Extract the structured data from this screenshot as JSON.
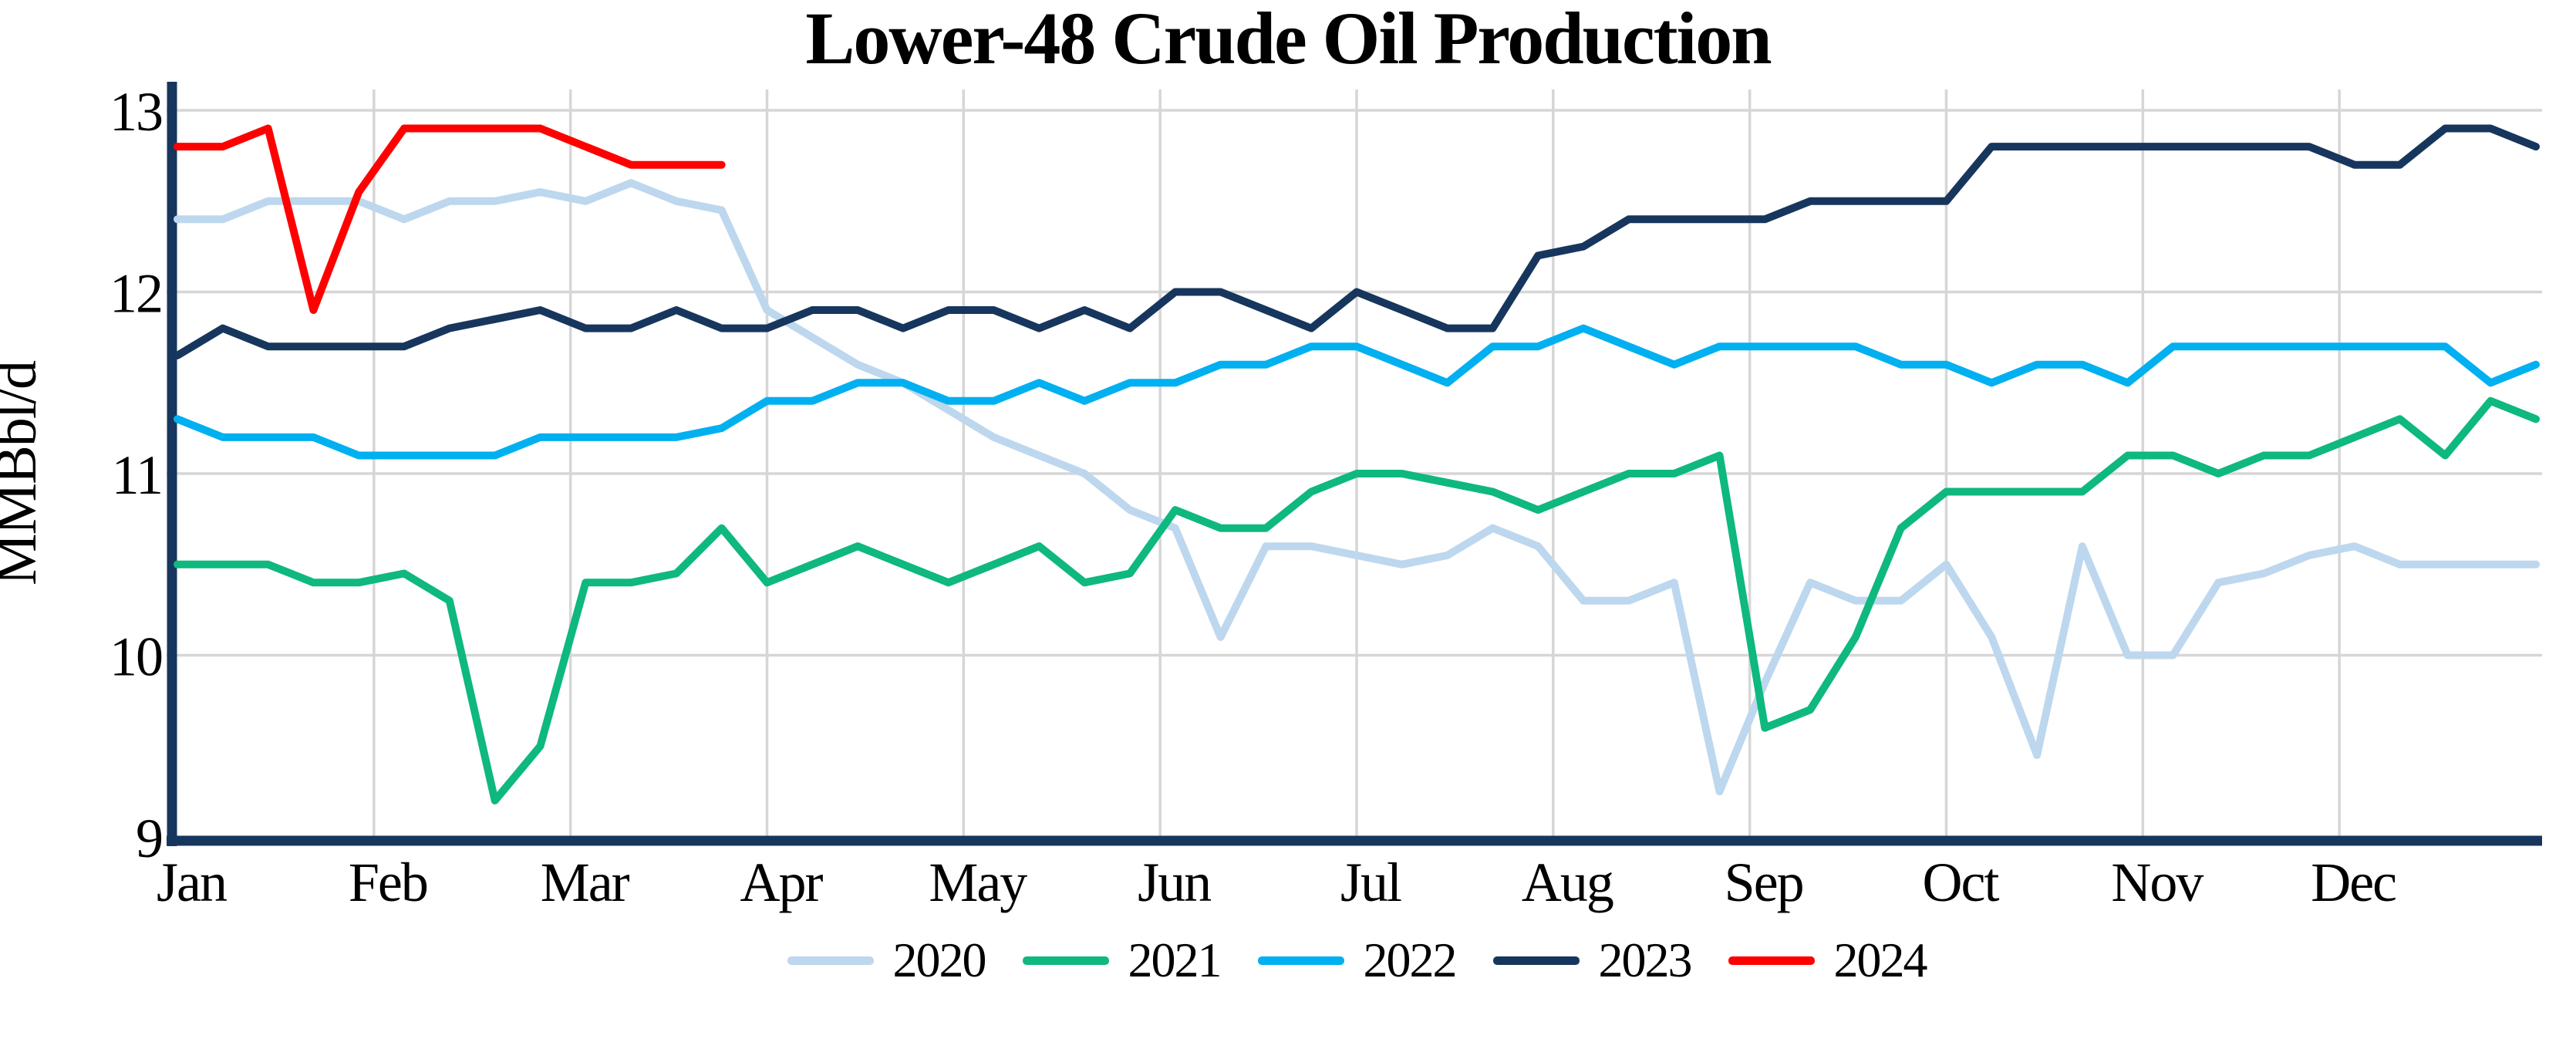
{
  "header": {
    "title": "Lower-48 Crude Oil Production"
  },
  "y_axis": {
    "label": "MMBbl/d",
    "tick_labels": [
      "13",
      "12",
      "11",
      "10",
      "9"
    ]
  },
  "x_axis": {
    "tick_labels": [
      "Jan",
      "Feb",
      "Mar",
      "Apr",
      "May",
      "Jun",
      "Jul",
      "Aug",
      "Sep",
      "Oct",
      "Nov",
      "Dec"
    ]
  },
  "legend": {
    "items": [
      {
        "label": "2020",
        "color": "#BDD7EE"
      },
      {
        "label": "2021",
        "color": "#0EB87E"
      },
      {
        "label": "2022",
        "color": "#00B0F0"
      },
      {
        "label": "2023",
        "color": "#17365D"
      },
      {
        "label": "2024",
        "color": "#FF0000"
      }
    ]
  },
  "chart_data": {
    "type": "line",
    "title": "Lower-48 Crude Oil Production",
    "ylabel": "MMBbl/d",
    "ylim": [
      9,
      13
    ],
    "y_ticks": [
      13,
      12,
      11,
      10,
      9
    ],
    "x_month_labels": [
      "Jan",
      "Feb",
      "Mar",
      "Apr",
      "May",
      "Jun",
      "Jul",
      "Aug",
      "Sep",
      "Oct",
      "Nov",
      "Dec"
    ],
    "x_cadence": "weekly",
    "weeks_per_year": 52,
    "grid": true,
    "grid_color": "#D6D6D6",
    "axis_color": "#17365D",
    "legend_position": "bottom",
    "series": [
      {
        "name": "2020",
        "color": "#BDD7EE",
        "values": [
          12.4,
          12.4,
          12.5,
          12.5,
          12.5,
          12.4,
          12.5,
          12.5,
          12.55,
          12.5,
          12.6,
          12.5,
          12.45,
          11.9,
          11.75,
          11.6,
          11.5,
          11.35,
          11.2,
          11.1,
          11.0,
          10.8,
          10.7,
          10.1,
          10.6,
          10.6,
          10.55,
          10.5,
          10.55,
          10.7,
          10.6,
          10.3,
          10.3,
          10.4,
          9.25,
          9.85,
          10.4,
          10.3,
          10.3,
          10.5,
          10.1,
          9.45,
          10.6,
          10.0,
          10.0,
          10.4,
          10.45,
          10.55,
          10.6,
          10.5,
          10.5,
          10.5,
          10.5
        ]
      },
      {
        "name": "2021",
        "color": "#0EB87E",
        "values": [
          10.5,
          10.5,
          10.5,
          10.4,
          10.4,
          10.45,
          10.3,
          9.2,
          9.5,
          10.4,
          10.4,
          10.45,
          10.7,
          10.4,
          10.5,
          10.6,
          10.5,
          10.4,
          10.5,
          10.6,
          10.4,
          10.45,
          10.8,
          10.7,
          10.7,
          10.9,
          11.0,
          11.0,
          10.95,
          10.9,
          10.8,
          10.9,
          11.0,
          11.0,
          11.1,
          9.6,
          9.7,
          10.1,
          10.7,
          10.9,
          10.9,
          10.9,
          10.9,
          11.1,
          11.1,
          11.0,
          11.1,
          11.1,
          11.2,
          11.3,
          11.1,
          11.4,
          11.3
        ]
      },
      {
        "name": "2022",
        "color": "#00B0F0",
        "values": [
          11.3,
          11.2,
          11.2,
          11.2,
          11.1,
          11.1,
          11.1,
          11.1,
          11.2,
          11.2,
          11.2,
          11.2,
          11.25,
          11.4,
          11.4,
          11.5,
          11.5,
          11.4,
          11.4,
          11.5,
          11.4,
          11.5,
          11.5,
          11.6,
          11.6,
          11.7,
          11.7,
          11.6,
          11.5,
          11.7,
          11.7,
          11.8,
          11.7,
          11.6,
          11.7,
          11.7,
          11.7,
          11.7,
          11.6,
          11.6,
          11.5,
          11.6,
          11.6,
          11.5,
          11.7,
          11.7,
          11.7,
          11.7,
          11.7,
          11.7,
          11.7,
          11.5,
          11.6
        ]
      },
      {
        "name": "2023",
        "color": "#17365D",
        "values": [
          11.65,
          11.8,
          11.7,
          11.7,
          11.7,
          11.7,
          11.8,
          11.85,
          11.9,
          11.8,
          11.8,
          11.9,
          11.8,
          11.8,
          11.9,
          11.9,
          11.8,
          11.9,
          11.9,
          11.8,
          11.9,
          11.8,
          12.0,
          12.0,
          11.9,
          11.8,
          12.0,
          11.9,
          11.8,
          11.8,
          12.2,
          12.25,
          12.4,
          12.4,
          12.4,
          12.4,
          12.5,
          12.5,
          12.5,
          12.5,
          12.8,
          12.8,
          12.8,
          12.8,
          12.8,
          12.8,
          12.8,
          12.8,
          12.7,
          12.7,
          12.9,
          12.9,
          12.8
        ]
      },
      {
        "name": "2024",
        "color": "#FF0000",
        "values": [
          12.8,
          12.8,
          12.9,
          11.9,
          12.55,
          12.9,
          12.9,
          12.9,
          12.9,
          12.8,
          12.7,
          12.7,
          12.7
        ]
      }
    ]
  }
}
